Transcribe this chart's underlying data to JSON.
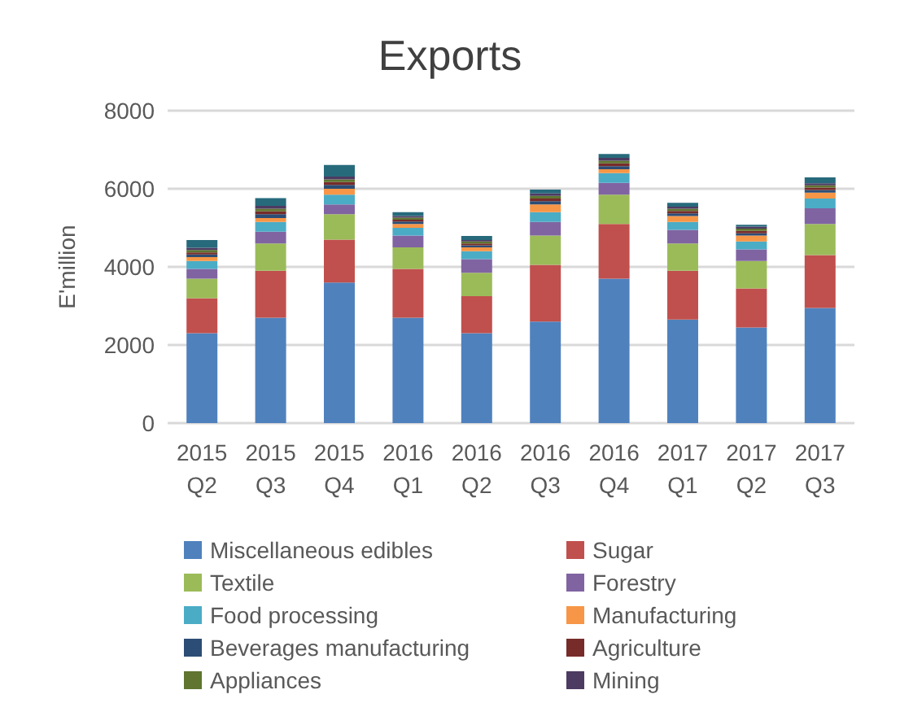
{
  "chart_data": {
    "type": "bar",
    "title": "Exports",
    "ylabel": "E'million",
    "stacked": true,
    "grid": "y",
    "legend": "bottom",
    "categories": [
      "2015\nQ2",
      "2015\nQ3",
      "2015\nQ4",
      "2016\nQ1",
      "2016\nQ2",
      "2016\nQ3",
      "2016\nQ4",
      "2017\nQ1",
      "2017\nQ2",
      "2017\nQ3"
    ],
    "ylim": [
      0,
      8000
    ],
    "yticks": [
      0,
      2000,
      4000,
      6000,
      8000
    ],
    "series": [
      {
        "name": "Miscellaneous edibles",
        "color": "#4f81bd",
        "values": [
          2300,
          2700,
          3600,
          2700,
          2300,
          2600,
          3700,
          2650,
          2450,
          2950
        ]
      },
      {
        "name": "Sugar",
        "color": "#c0504d",
        "values": [
          900,
          1200,
          1100,
          1250,
          950,
          1450,
          1400,
          1250,
          1000,
          1350
        ]
      },
      {
        "name": "Textile",
        "color": "#9bbb59",
        "values": [
          500,
          700,
          650,
          550,
          600,
          750,
          750,
          700,
          700,
          800
        ]
      },
      {
        "name": "Forestry",
        "color": "#8064a2",
        "values": [
          250,
          300,
          250,
          300,
          350,
          350,
          300,
          350,
          300,
          400
        ]
      },
      {
        "name": "Food processing",
        "color": "#4bacc6",
        "values": [
          200,
          250,
          250,
          200,
          200,
          250,
          250,
          200,
          200,
          250
        ]
      },
      {
        "name": "Manufacturing",
        "color": "#f79646",
        "values": [
          100,
          100,
          150,
          100,
          100,
          200,
          100,
          150,
          150,
          150
        ]
      },
      {
        "name": "Beverages manufacturing",
        "color": "#2c4d75",
        "values": [
          70,
          100,
          100,
          60,
          50,
          80,
          80,
          70,
          60,
          70
        ]
      },
      {
        "name": "Agriculture",
        "color": "#772c2a",
        "values": [
          50,
          70,
          70,
          50,
          50,
          70,
          70,
          60,
          60,
          60
        ]
      },
      {
        "name": "Appliances",
        "color": "#5f7530",
        "values": [
          60,
          70,
          70,
          50,
          50,
          70,
          70,
          60,
          60,
          60
        ]
      },
      {
        "name": "Mining",
        "color": "#4d3b62",
        "values": [
          60,
          70,
          70,
          40,
          40,
          60,
          70,
          50,
          50,
          50
        ]
      },
      {
        "color": "#276a7c",
        "values": [
          200,
          200,
          300,
          100,
          100,
          100,
          100,
          100,
          50,
          150
        ]
      }
    ]
  }
}
